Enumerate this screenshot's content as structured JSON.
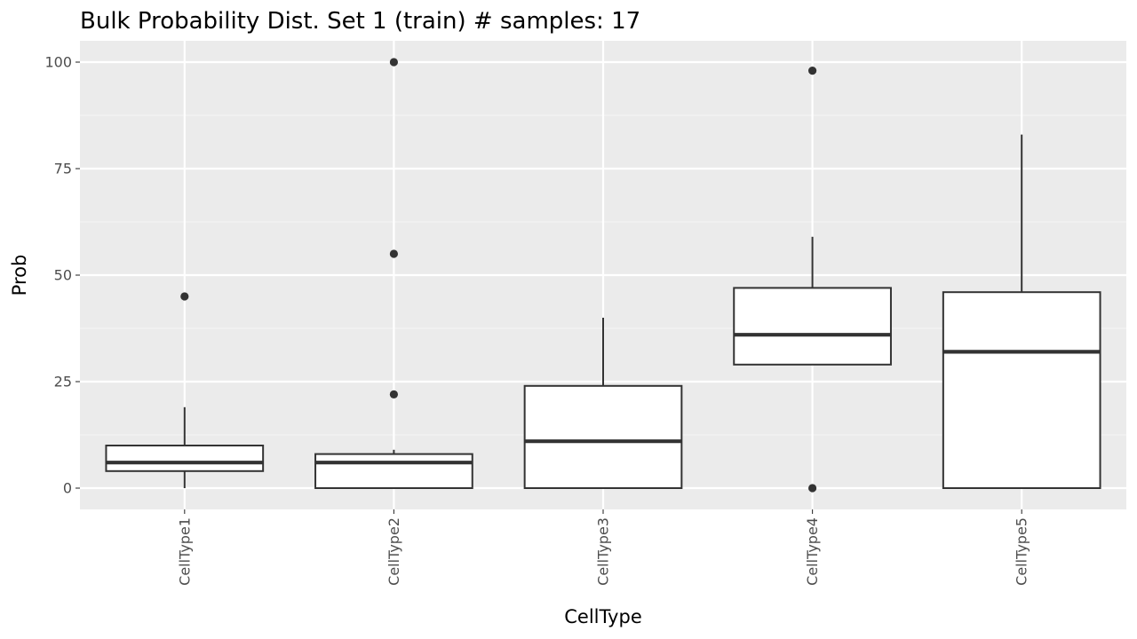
{
  "chart_data": {
    "type": "boxplot",
    "title": "Bulk Probability Dist. Set 1 (train) # samples: 17",
    "xlabel": "CellType",
    "ylabel": "Prob",
    "ylim": [
      -5,
      105
    ],
    "yticks": [
      0,
      25,
      50,
      75,
      100
    ],
    "grid": true,
    "categories": [
      "CellType1",
      "CellType2",
      "CellType3",
      "CellType4",
      "CellType5"
    ],
    "boxes": [
      {
        "category": "CellType1",
        "whisker_low": 0,
        "q1": 4,
        "median": 6,
        "q3": 10,
        "whisker_high": 19,
        "outliers": [
          45
        ]
      },
      {
        "category": "CellType2",
        "whisker_low": 0,
        "q1": 0,
        "median": 6,
        "q3": 8,
        "whisker_high": 9,
        "outliers": [
          22,
          55,
          100
        ]
      },
      {
        "category": "CellType3",
        "whisker_low": 0,
        "q1": 0,
        "median": 11,
        "q3": 24,
        "whisker_high": 40,
        "outliers": []
      },
      {
        "category": "CellType4",
        "whisker_low": 29,
        "q1": 29,
        "median": 36,
        "q3": 47,
        "whisker_high": 59,
        "outliers": [
          0,
          98
        ]
      },
      {
        "category": "CellType5",
        "whisker_low": 0,
        "q1": 0,
        "median": 32,
        "q3": 46,
        "whisker_high": 83,
        "outliers": []
      }
    ],
    "colors": {
      "panel_background": "#ebebeb",
      "grid_major": "#ffffff",
      "grid_minor": "#f5f5f5",
      "box_fill": "#ffffff",
      "box_stroke": "#333333",
      "outlier": "#333333",
      "tick_text": "#4d4d4d"
    }
  }
}
